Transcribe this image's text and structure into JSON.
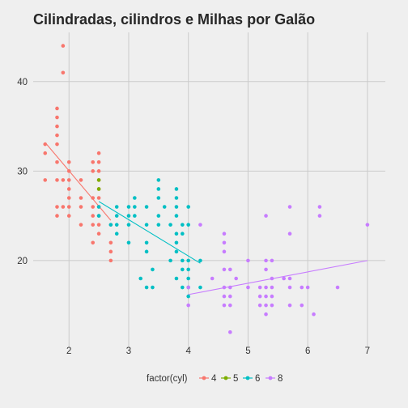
{
  "chart_data": {
    "type": "scatter",
    "title": "Cilindradas, cilindros e Milhas por Galão",
    "xlabel": "",
    "ylabel": "",
    "xlim": [
      1.4,
      7.3
    ],
    "ylim": [
      10.4,
      45.5
    ],
    "x_ticks": [
      "2",
      "3",
      "4",
      "5",
      "6",
      "7"
    ],
    "y_ticks": [
      "20",
      "30",
      "40"
    ],
    "grid": true,
    "legend": {
      "position": "bottom",
      "title": "factor(cyl)",
      "entries": [
        "4",
        "5",
        "6",
        "8"
      ]
    },
    "colors": {
      "4": "#f8766d",
      "5": "#7cae00",
      "6": "#00bfc4",
      "8": "#c77cff"
    },
    "series": [
      {
        "name": "4",
        "points": [
          [
            1.6,
            33
          ],
          [
            1.6,
            32
          ],
          [
            1.6,
            29
          ],
          [
            1.8,
            37
          ],
          [
            1.8,
            35
          ],
          [
            1.8,
            36
          ],
          [
            1.8,
            34
          ],
          [
            1.8,
            33
          ],
          [
            1.8,
            31
          ],
          [
            1.8,
            29
          ],
          [
            1.8,
            26
          ],
          [
            1.8,
            25
          ],
          [
            1.9,
            44
          ],
          [
            1.9,
            41
          ],
          [
            1.9,
            29
          ],
          [
            1.9,
            26
          ],
          [
            2.0,
            31
          ],
          [
            2.0,
            30
          ],
          [
            2.0,
            29
          ],
          [
            2.0,
            28
          ],
          [
            2.0,
            27
          ],
          [
            2.0,
            26
          ],
          [
            2.0,
            25
          ],
          [
            2.2,
            29
          ],
          [
            2.2,
            27
          ],
          [
            2.2,
            26
          ],
          [
            2.2,
            24
          ],
          [
            2.4,
            31
          ],
          [
            2.4,
            30
          ],
          [
            2.4,
            27
          ],
          [
            2.4,
            26
          ],
          [
            2.4,
            25
          ],
          [
            2.4,
            24
          ],
          [
            2.4,
            22
          ],
          [
            2.5,
            32
          ],
          [
            2.5,
            31
          ],
          [
            2.5,
            30
          ],
          [
            2.5,
            29
          ],
          [
            2.5,
            28
          ],
          [
            2.5,
            27
          ],
          [
            2.5,
            26
          ],
          [
            2.5,
            25
          ],
          [
            2.5,
            24
          ],
          [
            2.5,
            23
          ],
          [
            2.7,
            24
          ],
          [
            2.7,
            20
          ],
          [
            2.7,
            22
          ],
          [
            2.7,
            21
          ]
        ],
        "fit": [
          [
            1.6,
            33.2
          ],
          [
            2.7,
            24.5
          ]
        ]
      },
      {
        "name": "5",
        "points": [
          [
            2.5,
            29
          ],
          [
            2.5,
            28
          ]
        ],
        "fit": null
      },
      {
        "name": "6",
        "points": [
          [
            2.5,
            26
          ],
          [
            2.5,
            25
          ],
          [
            2.7,
            24
          ],
          [
            2.8,
            26
          ],
          [
            2.8,
            25
          ],
          [
            2.8,
            24
          ],
          [
            2.8,
            23
          ],
          [
            3.0,
            26
          ],
          [
            3.0,
            25
          ],
          [
            3.0,
            24
          ],
          [
            3.0,
            22
          ],
          [
            3.1,
            27
          ],
          [
            3.1,
            26
          ],
          [
            3.1,
            25
          ],
          [
            3.3,
            24
          ],
          [
            3.3,
            22
          ],
          [
            3.3,
            21
          ],
          [
            3.3,
            26
          ],
          [
            3.4,
            19
          ],
          [
            3.4,
            17
          ],
          [
            3.5,
            29
          ],
          [
            3.5,
            28
          ],
          [
            3.5,
            27
          ],
          [
            3.5,
            25
          ],
          [
            3.5,
            24
          ],
          [
            3.6,
            26
          ],
          [
            3.7,
            24
          ],
          [
            3.7,
            20
          ],
          [
            3.8,
            28
          ],
          [
            3.8,
            27
          ],
          [
            3.8,
            26
          ],
          [
            3.8,
            25
          ],
          [
            3.8,
            23
          ],
          [
            3.8,
            22
          ],
          [
            3.8,
            21
          ],
          [
            3.8,
            18
          ],
          [
            3.9,
            23
          ],
          [
            3.9,
            20
          ],
          [
            3.9,
            19
          ],
          [
            3.9,
            17
          ],
          [
            4.0,
            26
          ],
          [
            4.0,
            24
          ],
          [
            4.0,
            20
          ],
          [
            4.0,
            19
          ],
          [
            4.0,
            18
          ],
          [
            4.0,
            17
          ],
          [
            4.0,
            16
          ],
          [
            4.2,
            20
          ],
          [
            4.2,
            17
          ],
          [
            3.9,
            24
          ],
          [
            3.3,
            17
          ],
          [
            3.2,
            18
          ]
        ],
        "fit": [
          [
            2.5,
            26.6
          ],
          [
            4.2,
            19.7
          ]
        ]
      },
      {
        "name": "8",
        "points": [
          [
            4.0,
            17
          ],
          [
            4.0,
            15
          ],
          [
            4.2,
            24
          ],
          [
            4.4,
            18
          ],
          [
            4.6,
            23
          ],
          [
            4.6,
            22
          ],
          [
            4.6,
            21
          ],
          [
            4.6,
            19
          ],
          [
            4.6,
            17
          ],
          [
            4.6,
            16
          ],
          [
            4.6,
            15
          ],
          [
            4.7,
            19
          ],
          [
            4.7,
            17
          ],
          [
            4.7,
            16
          ],
          [
            4.7,
            15
          ],
          [
            4.7,
            12
          ],
          [
            4.8,
            18
          ],
          [
            5.0,
            17
          ],
          [
            5.2,
            17
          ],
          [
            5.2,
            16
          ],
          [
            5.2,
            15
          ],
          [
            5.3,
            25
          ],
          [
            5.3,
            20
          ],
          [
            5.3,
            19
          ],
          [
            5.3,
            17
          ],
          [
            5.3,
            16
          ],
          [
            5.3,
            15
          ],
          [
            5.3,
            14
          ],
          [
            5.4,
            20
          ],
          [
            5.4,
            18
          ],
          [
            5.4,
            17
          ],
          [
            5.4,
            16
          ],
          [
            5.4,
            15
          ],
          [
            5.7,
            26
          ],
          [
            5.7,
            23
          ],
          [
            5.7,
            18
          ],
          [
            5.7,
            17
          ],
          [
            5.7,
            15
          ],
          [
            5.9,
            17
          ],
          [
            5.9,
            15
          ],
          [
            6.0,
            17
          ],
          [
            6.1,
            14
          ],
          [
            6.2,
            26
          ],
          [
            6.2,
            25
          ],
          [
            6.5,
            17
          ],
          [
            7.0,
            24
          ],
          [
            5.6,
            18
          ],
          [
            5.0,
            20
          ]
        ],
        "fit": [
          [
            4.0,
            16.2
          ],
          [
            7.0,
            20.0
          ]
        ]
      }
    ]
  }
}
